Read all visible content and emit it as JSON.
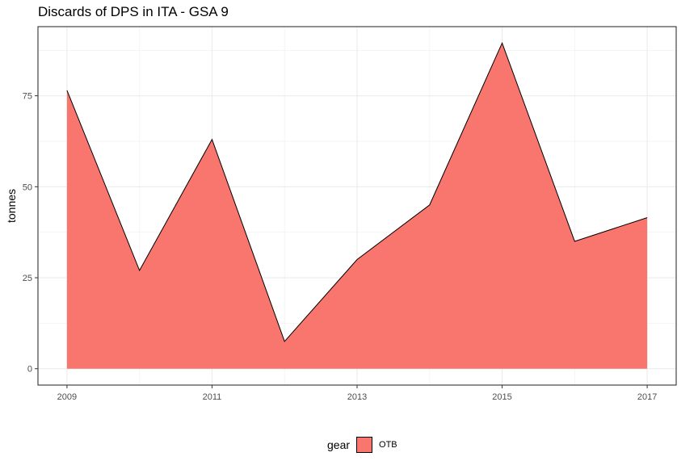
{
  "chart_data": {
    "type": "area",
    "title": "Discards of DPS in ITA - GSA 9",
    "xlabel": "",
    "ylabel": "tonnes",
    "x": [
      2009,
      2010,
      2011,
      2012,
      2013,
      2014,
      2015,
      2016,
      2017
    ],
    "series": [
      {
        "name": "OTB",
        "values": [
          76.5,
          27,
          63,
          7.5,
          30,
          45,
          89.5,
          35,
          41.5
        ],
        "color": "#F8766D"
      }
    ],
    "xlim": [
      2008.6,
      2017.4
    ],
    "ylim": [
      -4.5,
      94
    ],
    "x_ticks": [
      "2009",
      "2011",
      "2013",
      "2015",
      "2017"
    ],
    "y_ticks": [
      "0",
      "25",
      "50",
      "75"
    ],
    "grid": true,
    "legend": {
      "title": "gear",
      "entries": [
        "OTB"
      ],
      "position": "bottom"
    }
  }
}
